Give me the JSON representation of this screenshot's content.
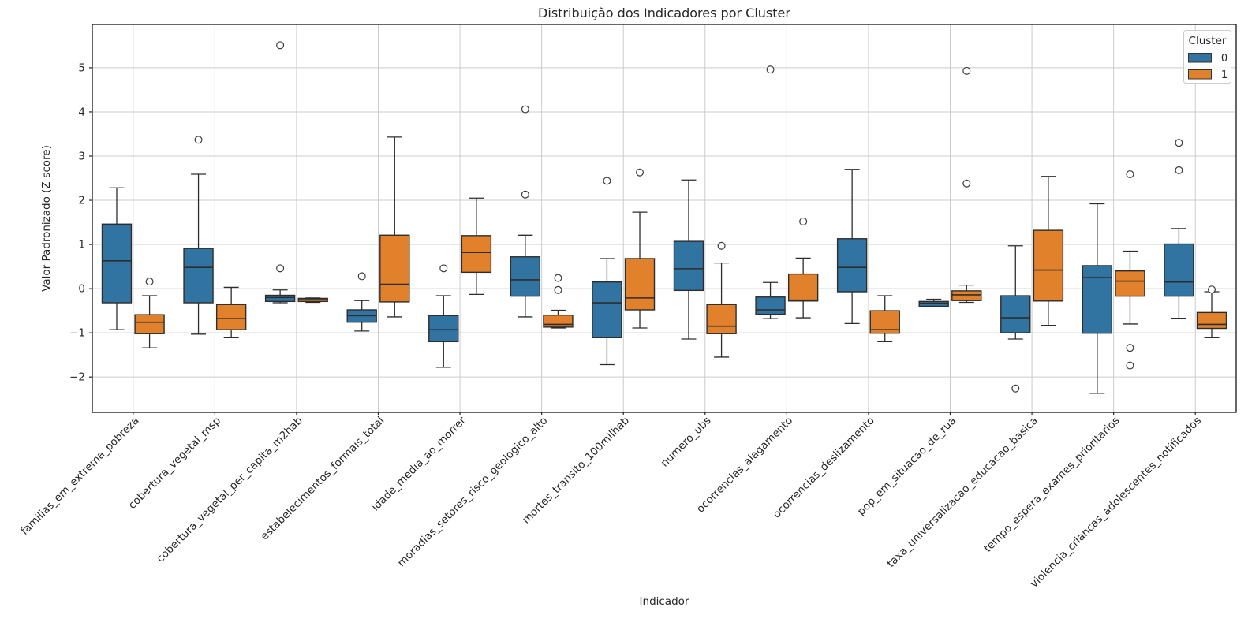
{
  "chart_data": {
    "type": "grouped_boxplot",
    "title": "Distribuição dos Indicadores por Cluster",
    "xlabel": "Indicador",
    "ylabel": "Valor Padronizado (Z-score)",
    "ylim": [
      -2.8,
      5.98
    ],
    "yticks": [
      -2,
      -1,
      0,
      1,
      2,
      3,
      4,
      5
    ],
    "grid": true,
    "legend": {
      "title": "Cluster",
      "position": "upper right",
      "entries": [
        {
          "label": "0",
          "color": "#3274a1"
        },
        {
          "label": "1",
          "color": "#e1812c"
        }
      ]
    },
    "categories": [
      "familias_em_extrema_pobreza",
      "cobertura_vegetal_msp",
      "cobertura_vegetal_per_capita_m2hab",
      "estabelecimentos_formais_total",
      "idade_media_ao_morrer",
      "moradias_setores_risco_geologico_alto",
      "mortes_transito_100milhab",
      "numero_ubs",
      "ocorrencias_alagamento",
      "ocorrencias_deslizamento",
      "pop_em_situacao_de_rua",
      "taxa_universalizacao_educacao_basica",
      "tempo_espera_exames_prioritarios",
      "violencia_criancas_adolescentes_notificados"
    ],
    "series": [
      {
        "name": "0",
        "color": "#3274a1",
        "boxes": [
          {
            "whislo": -0.93,
            "q1": -0.32,
            "med": 0.63,
            "q3": 1.46,
            "whishi": 2.28,
            "fliers": []
          },
          {
            "whislo": -1.03,
            "q1": -0.32,
            "med": 0.48,
            "q3": 0.91,
            "whishi": 2.59,
            "fliers": [
              3.37
            ]
          },
          {
            "whislo": -0.32,
            "q1": -0.29,
            "med": -0.2,
            "q3": -0.15,
            "whishi": -0.03,
            "fliers": [
              0.46,
              5.51
            ]
          },
          {
            "whislo": -0.96,
            "q1": -0.76,
            "med": -0.61,
            "q3": -0.48,
            "whishi": -0.27,
            "fliers": [
              0.28
            ]
          },
          {
            "whislo": -1.78,
            "q1": -1.2,
            "med": -0.93,
            "q3": -0.61,
            "whishi": -0.16,
            "fliers": [
              0.46
            ]
          },
          {
            "whislo": -0.64,
            "q1": -0.17,
            "med": 0.2,
            "q3": 0.72,
            "whishi": 1.21,
            "fliers": [
              2.13,
              4.06
            ]
          },
          {
            "whislo": -1.72,
            "q1": -1.11,
            "med": -0.32,
            "q3": 0.15,
            "whishi": 0.68,
            "fliers": [
              2.44
            ]
          },
          {
            "whislo": -1.14,
            "q1": -0.04,
            "med": 0.45,
            "q3": 1.07,
            "whishi": 2.46,
            "fliers": []
          },
          {
            "whislo": -0.68,
            "q1": -0.58,
            "med": -0.48,
            "q3": -0.19,
            "whishi": 0.14,
            "fliers": [
              4.96
            ]
          },
          {
            "whislo": -0.79,
            "q1": -0.07,
            "med": 0.48,
            "q3": 1.13,
            "whishi": 2.7,
            "fliers": []
          },
          {
            "whislo": -0.41,
            "q1": -0.4,
            "med": -0.33,
            "q3": -0.29,
            "whishi": -0.24,
            "fliers": []
          },
          {
            "whislo": -1.14,
            "q1": -1.0,
            "med": -0.66,
            "q3": -0.16,
            "whishi": 0.97,
            "fliers": [
              -2.26
            ]
          },
          {
            "whislo": -2.37,
            "q1": -1.01,
            "med": 0.25,
            "q3": 0.52,
            "whishi": 1.92,
            "fliers": []
          },
          {
            "whislo": -0.67,
            "q1": -0.17,
            "med": 0.15,
            "q3": 1.01,
            "whishi": 1.36,
            "fliers": [
              2.68,
              3.3
            ]
          }
        ]
      },
      {
        "name": "1",
        "color": "#e1812c",
        "boxes": [
          {
            "whislo": -1.34,
            "q1": -1.02,
            "med": -0.76,
            "q3": -0.59,
            "whishi": -0.16,
            "fliers": [
              0.16
            ]
          },
          {
            "whislo": -1.11,
            "q1": -0.93,
            "med": -0.68,
            "q3": -0.36,
            "whishi": 0.03,
            "fliers": []
          },
          {
            "whislo": -0.31,
            "q1": -0.29,
            "med": -0.25,
            "q3": -0.22,
            "whishi": -0.21,
            "fliers": []
          },
          {
            "whislo": -0.64,
            "q1": -0.3,
            "med": 0.1,
            "q3": 1.21,
            "whishi": 3.43,
            "fliers": []
          },
          {
            "whislo": -0.13,
            "q1": 0.37,
            "med": 0.82,
            "q3": 1.2,
            "whishi": 2.05,
            "fliers": []
          },
          {
            "whislo": -0.89,
            "q1": -0.87,
            "med": -0.81,
            "q3": -0.6,
            "whishi": -0.49,
            "fliers": [
              -0.03,
              0.24
            ]
          },
          {
            "whislo": -0.89,
            "q1": -0.48,
            "med": -0.21,
            "q3": 0.68,
            "whishi": 1.73,
            "fliers": [
              2.63
            ]
          },
          {
            "whislo": -1.55,
            "q1": -1.02,
            "med": -0.85,
            "q3": -0.36,
            "whishi": 0.58,
            "fliers": [
              0.97
            ]
          },
          {
            "whislo": -0.66,
            "q1": -0.28,
            "med": -0.26,
            "q3": 0.33,
            "whishi": 0.69,
            "fliers": [
              1.52
            ]
          },
          {
            "whislo": -1.2,
            "q1": -1.01,
            "med": -0.93,
            "q3": -0.5,
            "whishi": -0.16,
            "fliers": []
          },
          {
            "whislo": -0.31,
            "q1": -0.27,
            "med": -0.14,
            "q3": -0.05,
            "whishi": 0.08,
            "fliers": [
              2.38,
              4.93
            ]
          },
          {
            "whislo": -0.83,
            "q1": -0.28,
            "med": 0.42,
            "q3": 1.32,
            "whishi": 2.54,
            "fliers": []
          },
          {
            "whislo": -0.8,
            "q1": -0.17,
            "med": 0.17,
            "q3": 0.4,
            "whishi": 0.85,
            "fliers": [
              2.59,
              -1.34,
              -1.74
            ]
          },
          {
            "whislo": -1.11,
            "q1": -0.9,
            "med": -0.81,
            "q3": -0.54,
            "whishi": -0.07,
            "fliers": [
              -0.02
            ]
          }
        ]
      }
    ]
  }
}
